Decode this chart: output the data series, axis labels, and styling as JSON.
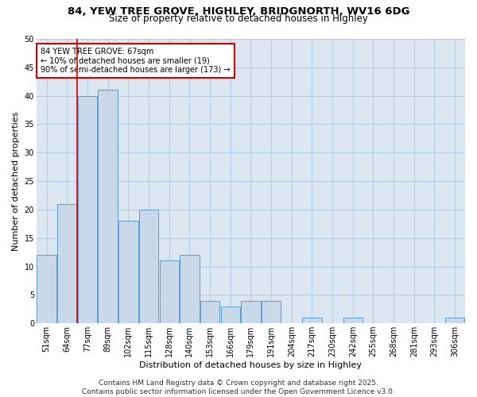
{
  "title1": "84, YEW TREE GROVE, HIGHLEY, BRIDGNORTH, WV16 6DG",
  "title2": "Size of property relative to detached houses in Highley",
  "xlabel": "Distribution of detached houses by size in Highley",
  "ylabel": "Number of detached properties",
  "categories": [
    "51sqm",
    "64sqm",
    "77sqm",
    "89sqm",
    "102sqm",
    "115sqm",
    "128sqm",
    "140sqm",
    "153sqm",
    "166sqm",
    "179sqm",
    "191sqm",
    "204sqm",
    "217sqm",
    "230sqm",
    "242sqm",
    "255sqm",
    "268sqm",
    "281sqm",
    "293sqm",
    "306sqm"
  ],
  "values": [
    12,
    21,
    40,
    41,
    18,
    20,
    11,
    12,
    4,
    3,
    4,
    4,
    0,
    1,
    0,
    1,
    0,
    0,
    0,
    0,
    1
  ],
  "bar_color": "#c9d9ea",
  "bar_edge_color": "#5b9bd5",
  "vline_x_index": 1.5,
  "vline_color": "#cc0000",
  "annotation_text": "84 YEW TREE GROVE: 67sqm\n← 10% of detached houses are smaller (19)\n90% of semi-detached houses are larger (173) →",
  "annotation_box_color": "#ffffff",
  "annotation_box_edge": "#cc0000",
  "ylim": [
    0,
    50
  ],
  "yticks": [
    0,
    5,
    10,
    15,
    20,
    25,
    30,
    35,
    40,
    45,
    50
  ],
  "footer": "Contains HM Land Registry data © Crown copyright and database right 2025.\nContains public sector information licensed under the Open Government Licence v3.0.",
  "bg_color": "#ffffff",
  "plot_bg_color": "#dce6f1",
  "grid_color": "#b8cce4",
  "title_fontsize": 9.5,
  "subtitle_fontsize": 8.5,
  "tick_fontsize": 7,
  "label_fontsize": 8,
  "footer_fontsize": 6.5
}
